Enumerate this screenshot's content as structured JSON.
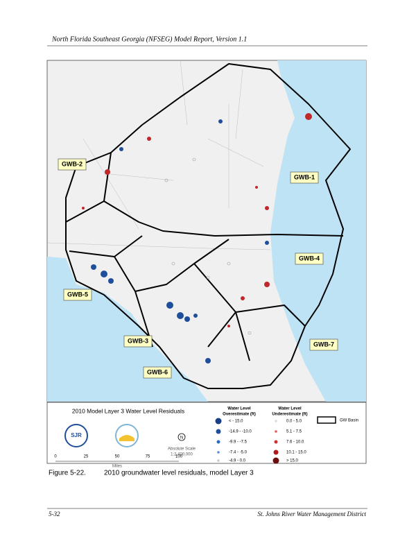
{
  "header": {
    "title": "North Florida Southeast Georgia (NFSEG) Model Report, Version 1.1"
  },
  "figure": {
    "labels": [
      "GWB-1",
      "GWB-2",
      "GWB-3",
      "GWB-4",
      "GWB-5",
      "GWB-6",
      "GWB-7"
    ],
    "legend": {
      "title": "2010 Model Layer 3 Water Level Residuals",
      "overestimate": {
        "heading": [
          "Water Level",
          "Overestimate (ft)"
        ],
        "items": [
          "< - 15.0",
          "-14.9 - -10.0",
          "-9.9 - -7.5",
          "-7.4 - -5.0",
          "-4.9 - 0.0"
        ]
      },
      "underestimate": {
        "heading": [
          "Water Level",
          "Underestimate (ft)"
        ],
        "items": [
          "0.0 - 5.0",
          "5.1 - 7.5",
          "7.6 - 10.0",
          "10.1 - 15.0",
          "> 15.0"
        ]
      },
      "basin": "GW Basin",
      "scale": {
        "ticks": [
          "0",
          "25",
          "50",
          "75",
          "100"
        ],
        "unit": "Miles",
        "absolute": "Absolute Scale",
        "ratio": "1:2,400,000"
      },
      "north": "N",
      "logo": "SJR"
    }
  },
  "caption": {
    "number": "Figure 5-22.",
    "text": "2010 groundwater level residuals, model Layer 3"
  },
  "footer": {
    "page": "5-32",
    "org": "St. Johns River Water Management District"
  }
}
